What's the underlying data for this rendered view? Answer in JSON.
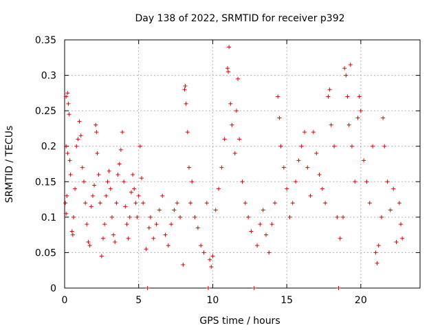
{
  "chart_data": {
    "type": "scatter",
    "title": "Day 138 of 2022, SRMTID for receiver p392",
    "xlabel": "GPS time / hours",
    "ylabel": "SRMTID / TECUs",
    "xlim": [
      0,
      24
    ],
    "ylim": [
      0,
      0.35
    ],
    "xticks": [
      0,
      5,
      10,
      15,
      20
    ],
    "xtick_labels": [
      "0",
      "5",
      "10",
      "15",
      "20"
    ],
    "yticks": [
      0,
      0.05,
      0.1,
      0.15,
      0.2,
      0.25,
      0.3,
      0.35
    ],
    "ytick_labels": [
      "0",
      "0.05",
      "0.1",
      "0.15",
      "0.2",
      "0.25",
      "0.3",
      "0.35"
    ],
    "grid": true,
    "marker": "+",
    "color": "#e00000",
    "series": [
      {
        "name": "SRMTID",
        "points": [
          [
            0.1,
            0.27
          ],
          [
            0.2,
            0.275
          ],
          [
            0.25,
            0.26
          ],
          [
            0.3,
            0.245
          ],
          [
            0.1,
            0.2
          ],
          [
            0.2,
            0.19
          ],
          [
            0.05,
            0.12
          ],
          [
            0.1,
            0.105
          ],
          [
            0.15,
            0.13
          ],
          [
            0.35,
            0.18
          ],
          [
            0.4,
            0.16
          ],
          [
            0.5,
            0.08
          ],
          [
            0.55,
            0.075
          ],
          [
            0.6,
            0.1
          ],
          [
            0.7,
            0.14
          ],
          [
            0.8,
            0.2
          ],
          [
            0.9,
            0.21
          ],
          [
            1.0,
            0.235
          ],
          [
            1.1,
            0.215
          ],
          [
            1.2,
            0.17
          ],
          [
            1.3,
            0.15
          ],
          [
            1.4,
            0.12
          ],
          [
            1.5,
            0.09
          ],
          [
            1.6,
            0.065
          ],
          [
            1.7,
            0.06
          ],
          [
            1.8,
            0.115
          ],
          [
            1.9,
            0.13
          ],
          [
            2.0,
            0.145
          ],
          [
            2.1,
            0.23
          ],
          [
            2.15,
            0.22
          ],
          [
            2.2,
            0.19
          ],
          [
            2.3,
            0.16
          ],
          [
            2.4,
            0.12
          ],
          [
            2.5,
            0.045
          ],
          [
            2.6,
            0.07
          ],
          [
            2.7,
            0.09
          ],
          [
            2.8,
            0.13
          ],
          [
            2.9,
            0.15
          ],
          [
            3.0,
            0.165
          ],
          [
            3.1,
            0.14
          ],
          [
            3.2,
            0.1
          ],
          [
            3.3,
            0.075
          ],
          [
            3.4,
            0.065
          ],
          [
            3.5,
            0.12
          ],
          [
            3.6,
            0.16
          ],
          [
            3.7,
            0.175
          ],
          [
            3.8,
            0.195
          ],
          [
            3.9,
            0.22
          ],
          [
            4.0,
            0.15
          ],
          [
            4.1,
            0.115
          ],
          [
            4.2,
            0.09
          ],
          [
            4.3,
            0.07
          ],
          [
            4.4,
            0.1
          ],
          [
            4.5,
            0.135
          ],
          [
            4.6,
            0.16
          ],
          [
            4.7,
            0.14
          ],
          [
            4.8,
            0.12
          ],
          [
            4.9,
            0.1
          ],
          [
            5.0,
            0.13
          ],
          [
            5.1,
            0.2
          ],
          [
            5.2,
            0.155
          ],
          [
            5.3,
            0.12
          ],
          [
            5.5,
            0.055
          ],
          [
            5.6,
            0.0
          ],
          [
            5.7,
            0.085
          ],
          [
            5.8,
            0.1
          ],
          [
            6.0,
            0.07
          ],
          [
            6.2,
            0.09
          ],
          [
            6.4,
            0.11
          ],
          [
            6.6,
            0.13
          ],
          [
            6.8,
            0.075
          ],
          [
            7.0,
            0.06
          ],
          [
            7.2,
            0.09
          ],
          [
            7.4,
            0.11
          ],
          [
            7.6,
            0.12
          ],
          [
            7.8,
            0.1
          ],
          [
            8.0,
            0.033
          ],
          [
            8.1,
            0.28
          ],
          [
            8.15,
            0.285
          ],
          [
            8.2,
            0.26
          ],
          [
            8.3,
            0.22
          ],
          [
            8.4,
            0.17
          ],
          [
            8.5,
            0.12
          ],
          [
            8.6,
            0.15
          ],
          [
            8.8,
            0.1
          ],
          [
            9.0,
            0.085
          ],
          [
            9.2,
            0.06
          ],
          [
            9.4,
            0.05
          ],
          [
            9.6,
            0.12
          ],
          [
            9.7,
            0.0
          ],
          [
            9.8,
            0.04
          ],
          [
            9.9,
            0.03
          ],
          [
            10.0,
            0.045
          ],
          [
            10.2,
            0.11
          ],
          [
            10.4,
            0.14
          ],
          [
            10.6,
            0.17
          ],
          [
            10.8,
            0.21
          ],
          [
            11.0,
            0.31
          ],
          [
            11.05,
            0.305
          ],
          [
            11.1,
            0.34
          ],
          [
            11.2,
            0.26
          ],
          [
            11.3,
            0.23
          ],
          [
            11.5,
            0.19
          ],
          [
            11.6,
            0.25
          ],
          [
            11.7,
            0.295
          ],
          [
            11.8,
            0.21
          ],
          [
            12.0,
            0.15
          ],
          [
            12.2,
            0.12
          ],
          [
            12.4,
            0.1
          ],
          [
            12.6,
            0.08
          ],
          [
            12.8,
            0.0
          ],
          [
            13.0,
            0.06
          ],
          [
            13.2,
            0.09
          ],
          [
            13.4,
            0.11
          ],
          [
            13.6,
            0.075
          ],
          [
            13.8,
            0.05
          ],
          [
            14.0,
            0.09
          ],
          [
            14.2,
            0.12
          ],
          [
            14.4,
            0.27
          ],
          [
            14.5,
            0.24
          ],
          [
            14.6,
            0.2
          ],
          [
            14.8,
            0.17
          ],
          [
            15.0,
            0.14
          ],
          [
            15.2,
            0.1
          ],
          [
            15.4,
            0.12
          ],
          [
            15.6,
            0.15
          ],
          [
            15.8,
            0.18
          ],
          [
            16.0,
            0.2
          ],
          [
            16.2,
            0.22
          ],
          [
            16.4,
            0.17
          ],
          [
            16.6,
            0.13
          ],
          [
            16.8,
            0.22
          ],
          [
            17.0,
            0.19
          ],
          [
            17.2,
            0.16
          ],
          [
            17.4,
            0.14
          ],
          [
            17.6,
            0.12
          ],
          [
            17.8,
            0.27
          ],
          [
            17.9,
            0.28
          ],
          [
            18.0,
            0.23
          ],
          [
            18.2,
            0.2
          ],
          [
            18.4,
            0.1
          ],
          [
            18.5,
            0.0
          ],
          [
            18.6,
            0.07
          ],
          [
            18.8,
            0.1
          ],
          [
            18.9,
            0.31
          ],
          [
            19.0,
            0.3
          ],
          [
            19.1,
            0.27
          ],
          [
            19.2,
            0.23
          ],
          [
            19.3,
            0.315
          ],
          [
            19.4,
            0.2
          ],
          [
            19.6,
            0.15
          ],
          [
            19.8,
            0.24
          ],
          [
            19.9,
            0.27
          ],
          [
            20.0,
            0.25
          ],
          [
            20.2,
            0.18
          ],
          [
            20.4,
            0.15
          ],
          [
            20.6,
            0.12
          ],
          [
            20.8,
            0.2
          ],
          [
            21.0,
            0.05
          ],
          [
            21.1,
            0.035
          ],
          [
            21.2,
            0.06
          ],
          [
            21.4,
            0.1
          ],
          [
            21.5,
            0.24
          ],
          [
            21.6,
            0.2
          ],
          [
            21.8,
            0.15
          ],
          [
            22.0,
            0.11
          ],
          [
            22.2,
            0.14
          ],
          [
            22.4,
            0.065
          ],
          [
            22.6,
            0.12
          ],
          [
            22.7,
            0.09
          ],
          [
            22.8,
            0.07
          ]
        ]
      }
    ]
  }
}
